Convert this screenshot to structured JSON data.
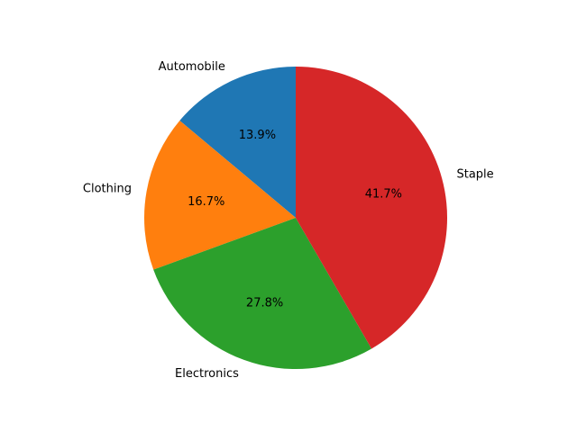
{
  "chart_data": {
    "type": "pie",
    "title": "",
    "start_angle_deg": 90,
    "direction": "counterclockwise",
    "slices": [
      {
        "label": "Automobile",
        "value": 13.9,
        "pct_label": "13.9%",
        "color": "#1f77b4"
      },
      {
        "label": "Clothing",
        "value": 16.7,
        "pct_label": "16.7%",
        "color": "#ff7f0e"
      },
      {
        "label": "Electronics",
        "value": 27.8,
        "pct_label": "27.8%",
        "color": "#2ca02c"
      },
      {
        "label": "Staple",
        "value": 41.7,
        "pct_label": "41.7%",
        "color": "#d62728"
      }
    ]
  }
}
